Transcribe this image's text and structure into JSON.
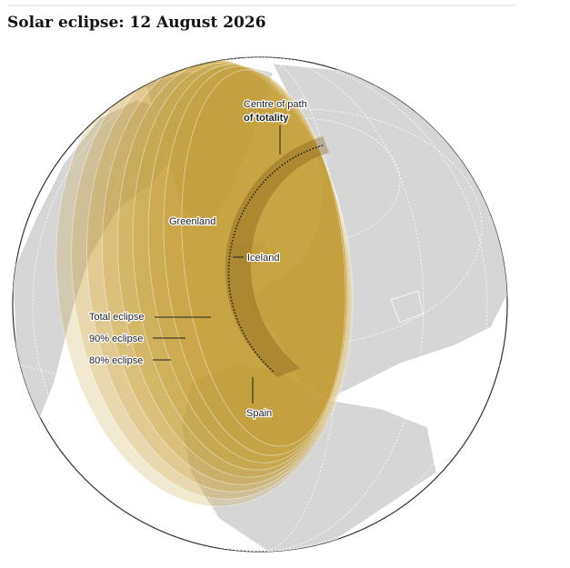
{
  "title": "Solar eclipse: 12 August 2026",
  "labels": {
    "centre_line1": "Centre of path",
    "centre_line2": "of totality",
    "greenland": "Greenland",
    "iceland": "Iceland",
    "total": "Total eclipse",
    "ninety": "90% eclipse",
    "eighty": "80% eclipse",
    "spain": "Spain"
  }
}
